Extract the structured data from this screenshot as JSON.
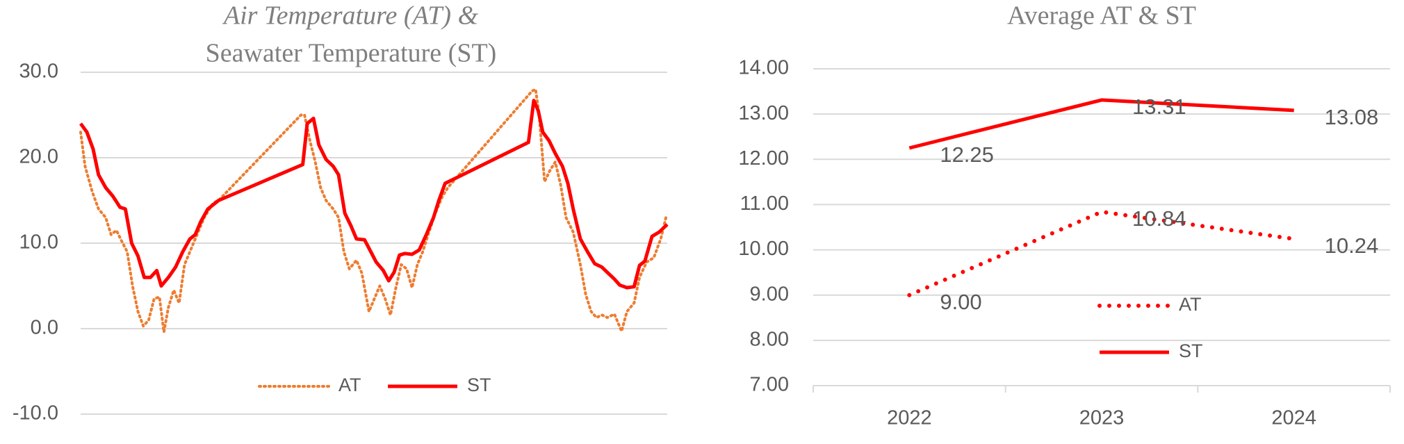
{
  "chart_data": [
    {
      "type": "line",
      "title_lines": [
        "Air Temperature (AT) &",
        "Seawater Temperature (ST)"
      ],
      "xlim": [
        0,
        655
      ],
      "ylim": [
        -10,
        30
      ],
      "yticks": [
        {
          "value": -10,
          "label": "-10.0"
        },
        {
          "value": 0,
          "label": "0.0"
        },
        {
          "value": 10,
          "label": "10.0"
        },
        {
          "value": 20,
          "label": "20.0"
        },
        {
          "value": 30,
          "label": "30.0"
        }
      ],
      "grid": true,
      "legend": "bottom",
      "series": [
        {
          "name": "AT",
          "color": "#ED7D31",
          "style": "dotted",
          "x": [
            0,
            5,
            13,
            20,
            28,
            34,
            40,
            46,
            52,
            58,
            64,
            70,
            76,
            82,
            88,
            93,
            98,
            104,
            110,
            116,
            122,
            130,
            138,
            148,
            154,
            246,
            250,
            256,
            262,
            268,
            274,
            282,
            288,
            294,
            300,
            308,
            314,
            322,
            328,
            334,
            340,
            346,
            352,
            358,
            364,
            370,
            376,
            382,
            388,
            396,
            404,
            410,
            504,
            508,
            512,
            518,
            524,
            530,
            536,
            542,
            550,
            558,
            564,
            570,
            576,
            582,
            588,
            596,
            604,
            610,
            618,
            624,
            632,
            640,
            648,
            654
          ],
          "values": [
            23,
            19,
            16,
            14,
            13,
            11,
            11.5,
            10.2,
            9,
            5,
            2,
            0.3,
            1,
            3.5,
            3.7,
            -0.4,
            2.5,
            4.5,
            3,
            7.5,
            9,
            11,
            13,
            14.7,
            15,
            25,
            25,
            22,
            19.5,
            16.5,
            15,
            14,
            13,
            9,
            7,
            8,
            6.5,
            2,
            3.5,
            5,
            3.5,
            1.6,
            4.8,
            7.5,
            7,
            4.8,
            7.5,
            9,
            11,
            13.5,
            15.5,
            16.5,
            27.8,
            28,
            25,
            17.2,
            18.5,
            19.5,
            16.8,
            13,
            11.3,
            7.5,
            4,
            2,
            1.3,
            1.6,
            1.3,
            1.7,
            -0.3,
            2,
            3,
            6,
            7.8,
            8.3,
            10.6,
            13.2
          ]
        },
        {
          "name": "ST",
          "color": "#FF0000",
          "style": "solid",
          "x": [
            0,
            7,
            14,
            20,
            28,
            36,
            44,
            50,
            57,
            64,
            71,
            78,
            85,
            90,
            98,
            106,
            114,
            122,
            128,
            134,
            142,
            154,
            248,
            253,
            260,
            266,
            274,
            282,
            288,
            295,
            302,
            308,
            317,
            324,
            330,
            338,
            344,
            350,
            356,
            362,
            370,
            378,
            386,
            394,
            400,
            407,
            500,
            506,
            511,
            516,
            523,
            530,
            538,
            544,
            550,
            558,
            566,
            574,
            582,
            590,
            596,
            602,
            610,
            618,
            624,
            630,
            638,
            646,
            655
          ],
          "values": [
            24,
            23,
            21,
            18,
            16.5,
            15.5,
            14.2,
            14,
            10,
            8.5,
            6,
            6,
            6.8,
            5,
            6,
            7.2,
            9,
            10.5,
            11,
            12.5,
            14,
            15,
            19.2,
            24,
            24.6,
            21.5,
            19.8,
            19,
            18,
            13.5,
            12,
            10.5,
            10.4,
            9,
            7.8,
            6.8,
            5.6,
            6.6,
            8.6,
            8.8,
            8.7,
            9.2,
            11,
            13,
            15,
            17,
            21.8,
            26.7,
            25.5,
            23,
            22,
            20.5,
            19,
            17,
            14,
            10.5,
            9,
            7.6,
            7.2,
            6.4,
            5.8,
            5.1,
            4.8,
            4.9,
            7.4,
            7.9,
            10.8,
            11.3,
            12.2
          ]
        }
      ]
    },
    {
      "type": "line",
      "title": "Average AT & ST",
      "categories": [
        "2022",
        "2023",
        "2024"
      ],
      "ylim": [
        7,
        14
      ],
      "yticks": [
        {
          "value": 7,
          "label": "7.00"
        },
        {
          "value": 8,
          "label": "8.00"
        },
        {
          "value": 9,
          "label": "9.00"
        },
        {
          "value": 10,
          "label": "10.00"
        },
        {
          "value": 11,
          "label": "11.00"
        },
        {
          "value": 12,
          "label": "12.00"
        },
        {
          "value": 13,
          "label": "13.00"
        },
        {
          "value": 14,
          "label": "14.00"
        }
      ],
      "grid": true,
      "legend": "center",
      "series": [
        {
          "name": "AT",
          "color": "#FF0000",
          "style": "dotted",
          "values": [
            9.0,
            10.84,
            10.24
          ],
          "value_labels": [
            "9.00",
            "10.84",
            "10.24"
          ]
        },
        {
          "name": "ST",
          "color": "#FF0000",
          "style": "solid",
          "values": [
            12.25,
            13.31,
            13.08
          ],
          "value_labels": [
            "12.25",
            "13.31",
            "13.08"
          ]
        }
      ]
    }
  ]
}
